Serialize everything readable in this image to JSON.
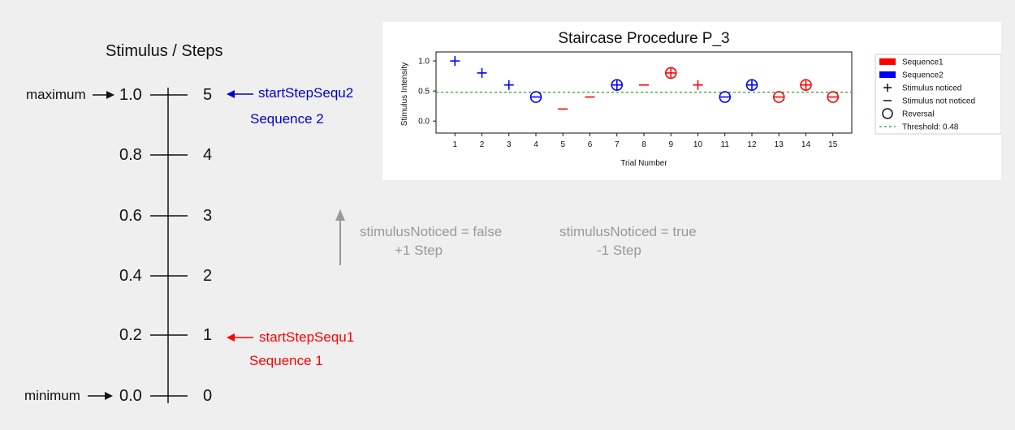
{
  "scale": {
    "title": "Stimulus / Steps",
    "ticks": [
      {
        "value": "1.0",
        "step": "5"
      },
      {
        "value": "0.8",
        "step": "4"
      },
      {
        "value": "0.6",
        "step": "3"
      },
      {
        "value": "0.4",
        "step": "2"
      },
      {
        "value": "0.2",
        "step": "1"
      },
      {
        "value": "0.0",
        "step": "0"
      }
    ],
    "maximum_label": "maximum",
    "minimum_label": "minimum",
    "start_seq2_label": "startStepSequ2",
    "seq2_label": "Sequence 2",
    "start_seq1_label": "startStepSequ1",
    "seq1_label": "Sequence 1"
  },
  "rules": {
    "up_line1": "stimulusNoticed = false",
    "up_line2": "+1 Step",
    "down_line1": "stimulusNoticed = true",
    "down_line2": "-1 Step"
  },
  "colors": {
    "seq1": "#ff0000",
    "seq2": "#0000ff",
    "threshold": "#2ca02c",
    "arrow_gray": "#999999"
  },
  "chart_data": {
    "type": "scatter",
    "title": "Staircase Procedure P_3",
    "xlabel": "Trial Number",
    "ylabel": "Stimulus Intensity",
    "xlim": [
      0.3,
      15.7
    ],
    "ylim": [
      -0.2,
      1.15
    ],
    "xticks": [
      1,
      2,
      3,
      4,
      5,
      6,
      7,
      8,
      9,
      10,
      11,
      12,
      13,
      14,
      15
    ],
    "yticks": [
      "0.0",
      "0.5",
      "1.0"
    ],
    "threshold": 0.48,
    "legend": {
      "position": "right",
      "entries": [
        "Sequence1",
        "Sequence2",
        "Stimulus noticed",
        "Stimulus not noticed",
        "Reversal",
        "Threshold: 0.48"
      ]
    },
    "points": [
      {
        "x": 1,
        "y": 1.0,
        "seq": 2,
        "noticed": true,
        "reversal": false
      },
      {
        "x": 2,
        "y": 0.8,
        "seq": 2,
        "noticed": true,
        "reversal": false
      },
      {
        "x": 3,
        "y": 0.6,
        "seq": 2,
        "noticed": true,
        "reversal": false
      },
      {
        "x": 4,
        "y": 0.4,
        "seq": 2,
        "noticed": false,
        "reversal": true
      },
      {
        "x": 5,
        "y": 0.2,
        "seq": 1,
        "noticed": false,
        "reversal": false
      },
      {
        "x": 6,
        "y": 0.4,
        "seq": 1,
        "noticed": false,
        "reversal": false
      },
      {
        "x": 7,
        "y": 0.6,
        "seq": 2,
        "noticed": true,
        "reversal": true
      },
      {
        "x": 8,
        "y": 0.6,
        "seq": 1,
        "noticed": false,
        "reversal": false
      },
      {
        "x": 9,
        "y": 0.8,
        "seq": 1,
        "noticed": true,
        "reversal": true
      },
      {
        "x": 10,
        "y": 0.6,
        "seq": 1,
        "noticed": true,
        "reversal": false
      },
      {
        "x": 11,
        "y": 0.4,
        "seq": 2,
        "noticed": false,
        "reversal": true
      },
      {
        "x": 12,
        "y": 0.6,
        "seq": 2,
        "noticed": true,
        "reversal": true
      },
      {
        "x": 13,
        "y": 0.4,
        "seq": 1,
        "noticed": false,
        "reversal": true
      },
      {
        "x": 14,
        "y": 0.6,
        "seq": 1,
        "noticed": true,
        "reversal": true
      },
      {
        "x": 15,
        "y": 0.4,
        "seq": 1,
        "noticed": false,
        "reversal": true
      }
    ]
  }
}
